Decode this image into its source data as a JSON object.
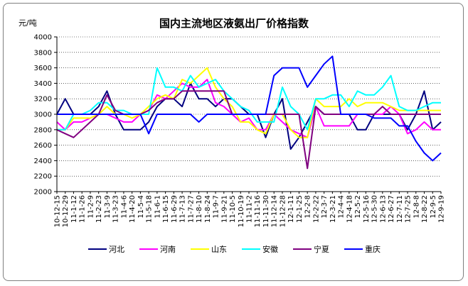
{
  "chart_data": {
    "type": "line",
    "title": "国内主流地区液氨出厂价格指数",
    "ylabel": "元/吨",
    "xlabel": "",
    "ylim": [
      2000,
      4000
    ],
    "ytick_step": 200,
    "grid": true,
    "legend_position": "bottom",
    "categories": [
      "10-12-15",
      "10-12-29",
      "11-1-12",
      "11-1-26",
      "11-2-9",
      "11-2-23",
      "11-3-9",
      "11-3-23",
      "11-4-6",
      "11-4-20",
      "11-5-4",
      "11-5-18",
      "11-6-1",
      "11-6-15",
      "11-6-29",
      "11-7-13",
      "11-7-27",
      "11-8-10",
      "11-8-24",
      "11-9-7",
      "11-9-21",
      "11-10-5",
      "11-10-19",
      "11-11-2",
      "11-11-16",
      "11-11-30",
      "11-12-14",
      "11-12-28",
      "12-1-11",
      "12-1-25",
      "12-2-8",
      "12-2-22",
      "12-3-7",
      "12-3-21",
      "12-4-4",
      "12-4-18",
      "12-5-2",
      "12-5-16",
      "12-5-30",
      "12-6-13",
      "12-6-27",
      "12-7-11",
      "12-7-25",
      "12-8-8",
      "12-8-22",
      "12-9-5",
      "12-9-19"
    ],
    "series": [
      {
        "name": "河北",
        "color": "#000080",
        "values": [
          3000,
          3200,
          3000,
          3000,
          3000,
          3100,
          3300,
          3000,
          2800,
          2800,
          2800,
          2900,
          3100,
          3200,
          3200,
          3100,
          3400,
          3200,
          3200,
          3100,
          3200,
          3200,
          3100,
          3000,
          3000,
          2700,
          3000,
          3200,
          2550,
          2700,
          2900,
          3100,
          3000,
          3000,
          3000,
          3000,
          2800,
          2800,
          3000,
          3000,
          3000,
          3000,
          2800,
          3000,
          3300,
          2800,
          2900
        ]
      },
      {
        "name": "河南",
        "color": "#ff00ff",
        "values": [
          2900,
          2800,
          2900,
          2900,
          2950,
          3000,
          3000,
          2950,
          2900,
          2900,
          3000,
          3050,
          3250,
          3200,
          3300,
          3400,
          3350,
          3350,
          3450,
          3150,
          3100,
          3000,
          2900,
          2950,
          2800,
          2800,
          3000,
          2900,
          2800,
          2750,
          2700,
          3100,
          2850,
          2850,
          2850,
          2850,
          3000,
          3000,
          3000,
          3000,
          3100,
          3000,
          2750,
          2800,
          2900,
          2800,
          2800
        ]
      },
      {
        "name": "山东",
        "color": "#ffff00",
        "values": [
          2800,
          2800,
          2950,
          2950,
          2950,
          3000,
          3100,
          3000,
          3000,
          2950,
          3000,
          3100,
          3200,
          3250,
          3200,
          3450,
          3400,
          3500,
          3600,
          3350,
          3200,
          3100,
          2900,
          2900,
          2800,
          2750,
          3000,
          3000,
          2800,
          2700,
          2700,
          3200,
          3100,
          3100,
          3100,
          3200,
          3100,
          3150,
          3150,
          3150,
          3100,
          3050,
          3050,
          3050,
          3050,
          3050,
          3050
        ]
      },
      {
        "name": "安徽",
        "color": "#00ffff",
        "values": [
          2800,
          2800,
          3000,
          3000,
          3050,
          3150,
          3150,
          3050,
          3050,
          3000,
          3000,
          3000,
          3600,
          3350,
          3350,
          3300,
          3500,
          3350,
          3400,
          3450,
          3300,
          3200,
          3100,
          3050,
          2900,
          2900,
          2900,
          3350,
          3100,
          3000,
          2800,
          3200,
          3200,
          3250,
          3250,
          3100,
          3300,
          3250,
          3250,
          3350,
          3500,
          3100,
          3050,
          3050,
          3100,
          3150,
          3150
        ]
      },
      {
        "name": "宁夏",
        "color": "#800080",
        "values": [
          2800,
          2750,
          2700,
          2800,
          2900,
          3000,
          3250,
          3050,
          3000,
          3000,
          3000,
          3050,
          3150,
          3200,
          3200,
          3300,
          3300,
          3300,
          3300,
          3300,
          3300,
          3000,
          3000,
          3000,
          3000,
          3000,
          3000,
          3000,
          3000,
          3000,
          2300,
          3100,
          3000,
          3000,
          3000,
          3000,
          3000,
          3000,
          3000,
          3100,
          3000,
          3000,
          3000,
          3000,
          3000,
          3000,
          3000
        ]
      },
      {
        "name": "重庆",
        "color": "#0000ff",
        "values": [
          3000,
          3000,
          3000,
          3000,
          3000,
          3000,
          3000,
          3000,
          3000,
          3000,
          3000,
          2750,
          3000,
          3000,
          3000,
          3000,
          3000,
          2900,
          3000,
          3000,
          3000,
          3000,
          3000,
          3000,
          3000,
          3000,
          3500,
          3600,
          3600,
          3600,
          3350,
          3500,
          3650,
          3750,
          3000,
          3000,
          3000,
          3000,
          2950,
          2950,
          2950,
          2850,
          2850,
          2650,
          2500,
          2400,
          2500
        ]
      }
    ]
  }
}
